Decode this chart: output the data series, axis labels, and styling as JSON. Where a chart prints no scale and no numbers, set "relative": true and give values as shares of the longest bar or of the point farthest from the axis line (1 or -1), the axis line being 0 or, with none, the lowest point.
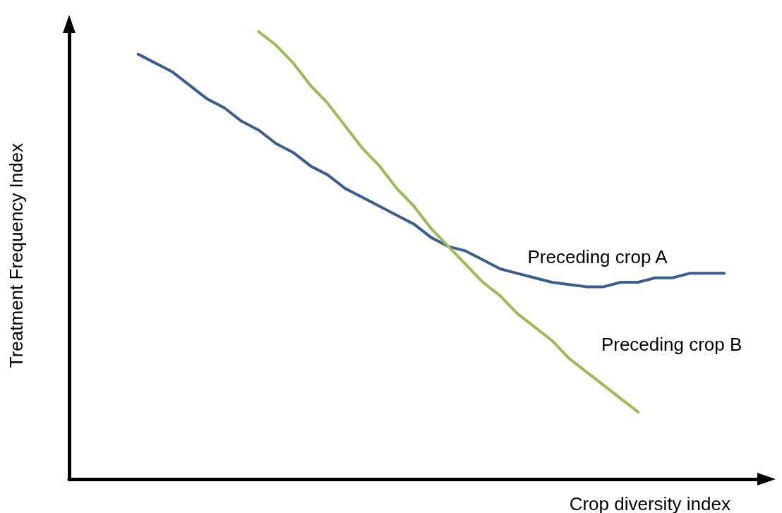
{
  "chart_data": {
    "type": "line",
    "relative": true,
    "xlabel": "Crop diversity index",
    "ylabel": "Treatment Frequency Index",
    "legend": false,
    "marker": "none",
    "line_style": "solid",
    "categories": [
      null,
      null,
      null,
      null,
      null,
      null,
      null,
      null,
      null,
      null,
      null,
      null,
      null,
      null,
      null,
      null,
      null,
      null,
      null,
      null,
      null,
      null,
      null,
      null,
      null,
      null,
      null,
      null,
      null,
      null,
      null,
      null,
      null,
      null,
      null,
      null,
      null,
      null,
      null,
      null,
      null
    ],
    "series": [
      {
        "name": "Preceding crop A",
        "color": "#3b5e8c",
        "values": [
          null,
          null,
          null,
          null,
          0.95,
          0.93,
          0.91,
          0.88,
          0.85,
          0.83,
          0.8,
          0.78,
          0.75,
          0.73,
          0.7,
          0.68,
          0.65,
          0.63,
          0.61,
          0.59,
          0.57,
          0.54,
          0.52,
          0.51,
          0.49,
          0.47,
          0.46,
          0.45,
          0.44,
          0.435,
          0.43,
          0.43,
          0.44,
          0.44,
          0.45,
          0.45,
          0.46,
          0.46,
          0.46,
          null,
          null
        ]
      },
      {
        "name": "Preceding crop B",
        "color": "#9bbb59",
        "values": [
          null,
          null,
          null,
          null,
          null,
          null,
          null,
          null,
          null,
          null,
          null,
          1,
          0.97,
          0.93,
          0.88,
          0.84,
          0.79,
          0.74,
          0.7,
          0.65,
          0.61,
          0.56,
          0.52,
          0.48,
          0.44,
          0.41,
          0.37,
          0.34,
          0.31,
          0.27,
          0.24,
          0.21,
          0.18,
          0.15,
          null,
          null,
          null,
          null,
          null,
          null,
          null
        ]
      }
    ]
  }
}
